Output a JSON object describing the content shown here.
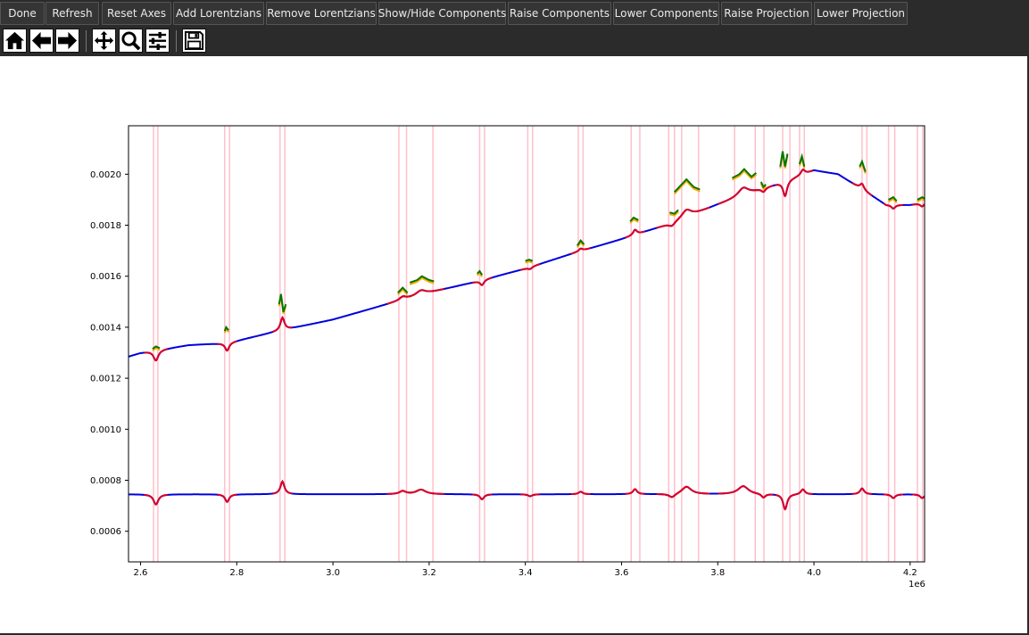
{
  "toolbar": {
    "buttons": [
      {
        "label": "Done"
      },
      {
        "label": "Refresh"
      },
      {
        "label": "Reset Axes"
      },
      {
        "label": "Add Lorentzians"
      },
      {
        "label": "Remove Lorentzians"
      },
      {
        "label": "Show/Hide Components"
      },
      {
        "label": "Raise Components"
      },
      {
        "label": "Lower Components"
      },
      {
        "label": "Raise Projection"
      },
      {
        "label": "Lower Projection"
      }
    ]
  },
  "navigation": {
    "tools": [
      {
        "icon": "home-icon"
      },
      {
        "icon": "back-arrow-icon"
      },
      {
        "icon": "forward-arrow-icon"
      },
      {
        "icon": "pan-icon"
      },
      {
        "icon": "zoom-icon"
      },
      {
        "icon": "configure-subplots-icon"
      },
      {
        "icon": "save-icon"
      }
    ]
  },
  "colors": {
    "fit": "#0000dd",
    "lorentzian": "#dd0022",
    "component_green": "#007700",
    "component_orange": "#ffaa00",
    "marker_lines": "#ffc0cb"
  },
  "chart_data": {
    "type": "line",
    "title": "",
    "xlabel": "",
    "ylabel": "",
    "x_offset_label": "1e6",
    "xlim": [
      2.575,
      4.23
    ],
    "ylim": [
      0.00048,
      0.00219
    ],
    "xticks": [
      2.6,
      2.8,
      3.0,
      3.2,
      3.4,
      3.6,
      3.8,
      4.0,
      4.2
    ],
    "xtick_labels": [
      "2.6",
      "2.8",
      "3.0",
      "3.2",
      "3.4",
      "3.6",
      "3.8",
      "4.0",
      "4.2"
    ],
    "yticks": [
      0.0006,
      0.0008,
      0.001,
      0.0012,
      0.0014,
      0.0016,
      0.0018,
      0.002
    ],
    "ytick_labels": [
      "0.0006",
      "0.0008",
      "0.0010",
      "0.0012",
      "0.0014",
      "0.0016",
      "0.0018",
      "0.0020"
    ],
    "marker_positions": [
      2.627,
      2.636,
      2.775,
      2.785,
      2.89,
      2.9,
      3.137,
      3.153,
      3.208,
      3.305,
      3.315,
      3.405,
      3.415,
      3.51,
      3.52,
      3.62,
      3.638,
      3.698,
      3.71,
      3.725,
      3.76,
      3.835,
      3.878,
      3.896,
      3.935,
      3.95,
      3.97,
      3.98,
      4.1,
      4.11,
      4.155,
      4.168,
      4.215,
      4.226
    ],
    "peaks": [
      {
        "x": 2.632,
        "amp": -4e-05,
        "width": 0.006
      },
      {
        "x": 2.78,
        "amp": -3e-05,
        "width": 0.005
      },
      {
        "x": 2.895,
        "amp": 5e-05,
        "width": 0.005
      },
      {
        "x": 3.145,
        "amp": 1.2e-05,
        "width": 0.008
      },
      {
        "x": 3.183,
        "amp": 1.8e-05,
        "width": 0.012
      },
      {
        "x": 3.31,
        "amp": -2e-05,
        "width": 0.005
      },
      {
        "x": 3.41,
        "amp": -8e-06,
        "width": 0.005
      },
      {
        "x": 3.515,
        "amp": 1e-05,
        "width": 0.005
      },
      {
        "x": 3.628,
        "amp": 2e-05,
        "width": 0.005
      },
      {
        "x": 3.705,
        "amp": -1.5e-05,
        "width": 0.008
      },
      {
        "x": 3.735,
        "amp": 3e-05,
        "width": 0.012
      },
      {
        "x": 3.853,
        "amp": 3.2e-05,
        "width": 0.013
      },
      {
        "x": 3.895,
        "amp": -1.5e-05,
        "width": 0.005
      },
      {
        "x": 3.94,
        "amp": -6e-05,
        "width": 0.005
      },
      {
        "x": 3.977,
        "amp": 2e-05,
        "width": 0.005
      },
      {
        "x": 4.1,
        "amp": 2.3e-05,
        "width": 0.005
      },
      {
        "x": 4.165,
        "amp": -1.5e-05,
        "width": 0.005
      },
      {
        "x": 4.225,
        "amp": -1.5e-05,
        "width": 0.005
      }
    ],
    "baseline_points": [
      [
        2.575,
        0.001285
      ],
      [
        2.6,
        0.0013
      ],
      [
        2.7,
        0.00133
      ],
      [
        2.78,
        0.001338
      ],
      [
        2.83,
        0.00136
      ],
      [
        2.9,
        0.00139
      ],
      [
        3.0,
        0.00143
      ],
      [
        3.15,
        0.00151
      ],
      [
        3.2,
        0.001535
      ],
      [
        3.3,
        0.00158
      ],
      [
        3.4,
        0.00163
      ],
      [
        3.5,
        0.00169
      ],
      [
        3.6,
        0.001745
      ],
      [
        3.7,
        0.001805
      ],
      [
        3.8,
        0.00188
      ],
      [
        3.86,
        0.00192
      ],
      [
        3.95,
        0.00198
      ],
      [
        4.0,
        0.002015
      ],
      [
        4.05,
        0.002
      ],
      [
        4.1,
        0.00194
      ],
      [
        4.15,
        0.00188
      ],
      [
        4.2,
        0.00188
      ],
      [
        4.23,
        0.00189
      ]
    ],
    "projection_baseline": 0.000745,
    "components": [
      {
        "x": [
          2.625,
          2.632,
          2.64
        ],
        "y": [
          0.001315,
          0.001325,
          0.001318
        ]
      },
      {
        "x": [
          2.775,
          2.778,
          2.783
        ],
        "y": [
          0.001385,
          0.0014,
          0.001388
        ]
      },
      {
        "x": [
          2.888,
          2.892,
          2.897,
          2.902
        ],
        "y": [
          0.00149,
          0.00153,
          0.00146,
          0.00149
        ]
      },
      {
        "x": [
          3.135,
          3.145,
          3.155
        ],
        "y": [
          0.001535,
          0.001555,
          0.001535
        ]
      },
      {
        "x": [
          3.16,
          3.175,
          3.185,
          3.2,
          3.21
        ],
        "y": [
          0.001575,
          0.001585,
          0.0016,
          0.001585,
          0.00158
        ]
      },
      {
        "x": [
          3.3,
          3.305,
          3.31
        ],
        "y": [
          0.00161,
          0.00162,
          0.001605
        ]
      },
      {
        "x": [
          3.4,
          3.408,
          3.415
        ],
        "y": [
          0.00166,
          0.001665,
          0.00166
        ]
      },
      {
        "x": [
          3.508,
          3.515,
          3.522
        ],
        "y": [
          0.00172,
          0.00174,
          0.001725
        ]
      },
      {
        "x": [
          3.618,
          3.625,
          3.635
        ],
        "y": [
          0.001815,
          0.00183,
          0.00182
        ]
      },
      {
        "x": [
          3.7,
          3.71,
          3.718
        ],
        "y": [
          0.00185,
          0.001845,
          0.00186
        ]
      },
      {
        "x": [
          3.71,
          3.72,
          3.735,
          3.75,
          3.763
        ],
        "y": [
          0.00193,
          0.00195,
          0.00198,
          0.00195,
          0.00194
        ]
      },
      {
        "x": [
          3.83,
          3.845,
          3.855,
          3.87,
          3.88
        ],
        "y": [
          0.001985,
          0.002,
          0.00202,
          0.00199,
          0.002005
        ]
      },
      {
        "x": [
          3.89,
          3.895,
          3.9
        ],
        "y": [
          0.00197,
          0.00195,
          0.00196
        ]
      },
      {
        "x": [
          3.93,
          3.935,
          3.94,
          3.945
        ],
        "y": [
          0.00203,
          0.00209,
          0.00203,
          0.00208
        ]
      },
      {
        "x": [
          3.97,
          3.975,
          3.98
        ],
        "y": [
          0.00204,
          0.00207,
          0.00203
        ]
      },
      {
        "x": [
          4.095,
          4.1,
          4.107
        ],
        "y": [
          0.00203,
          0.00205,
          0.00201
        ]
      },
      {
        "x": [
          4.155,
          4.165,
          4.172
        ],
        "y": [
          0.0019,
          0.00191,
          0.001895
        ]
      },
      {
        "x": [
          4.215,
          4.225,
          4.23
        ],
        "y": [
          0.0019,
          0.00191,
          0.001905
        ]
      }
    ]
  }
}
